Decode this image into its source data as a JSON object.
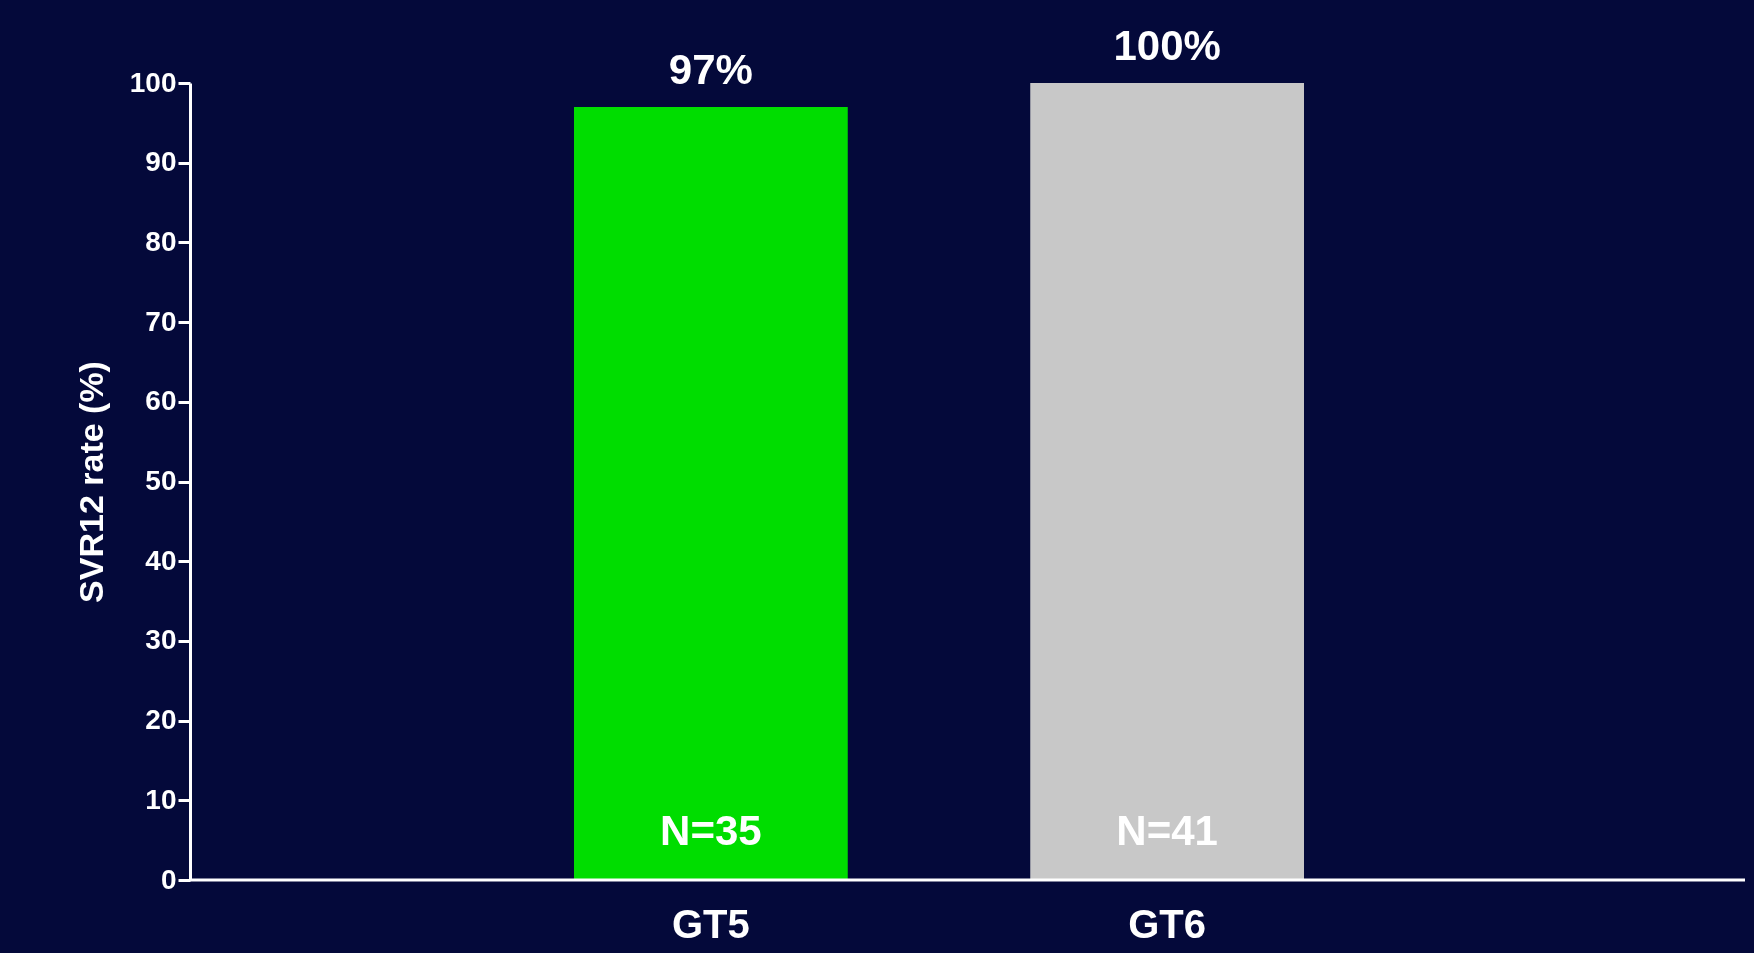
{
  "chart_data": {
    "type": "bar",
    "categories": [
      "GT5",
      "GT6"
    ],
    "values": [
      97,
      100
    ],
    "colors": [
      "#00dd00",
      "#c8c8c8"
    ],
    "ylabel": "SVR12 rate (%)",
    "ylim": [
      0,
      100
    ],
    "yticks": [
      0,
      10,
      20,
      30,
      40,
      50,
      60,
      70,
      80,
      90,
      100
    ],
    "value_labels": [
      "97%",
      "100%"
    ],
    "annotations": [
      "N=35",
      "N=41"
    ]
  }
}
